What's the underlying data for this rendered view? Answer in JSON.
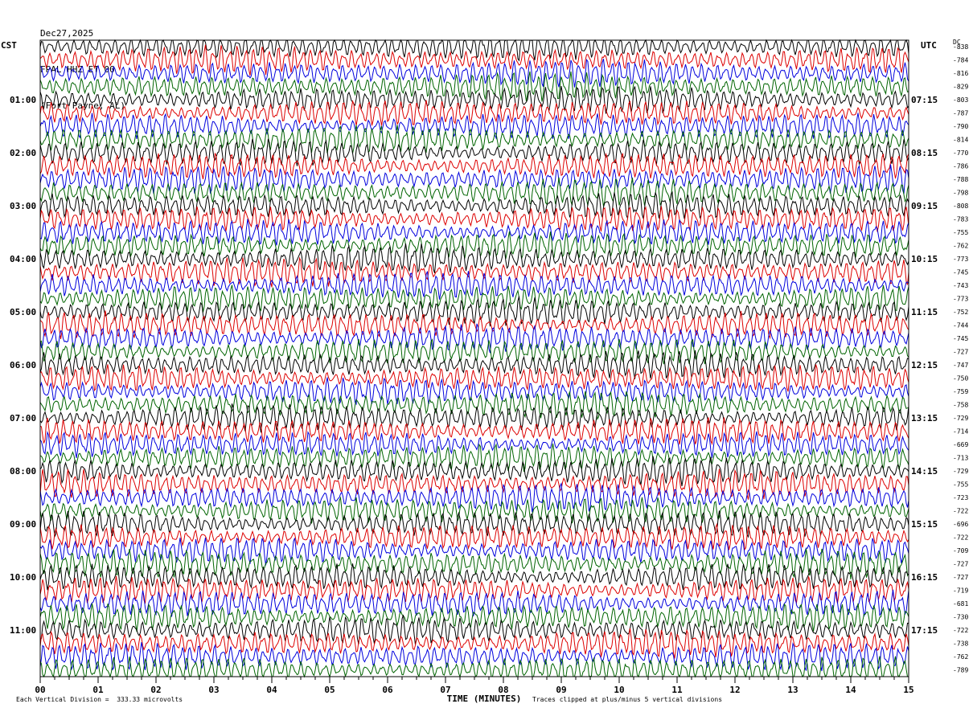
{
  "header": {
    "date": "Dec27,2025",
    "station": "FPAL HHZ ET 00",
    "location": "(Fort Payne, AL)"
  },
  "left_tz": "CST",
  "right_tz": "UTC",
  "dc_label": "DC",
  "footer": {
    "scale": "Each Vertical Division =  333.33 microvolts",
    "clip": "Traces clipped at plus/minus 5 vertical divisions"
  },
  "chart_data": {
    "type": "line",
    "title": "",
    "xlabel": "TIME (MINUTES)",
    "ylabel": "",
    "x_ticks": [
      "00",
      "01",
      "02",
      "03",
      "04",
      "05",
      "06",
      "07",
      "08",
      "09",
      "10",
      "11",
      "12",
      "13",
      "14",
      "15"
    ],
    "xlim": [
      0,
      15
    ],
    "trace_colors": [
      "#000000",
      "#dd0000",
      "#0000dd",
      "#006400"
    ],
    "left_time_labels": [
      "01:00",
      "02:00",
      "03:00",
      "04:00",
      "05:00",
      "06:00",
      "07:00",
      "08:00",
      "09:00",
      "10:00",
      "11:00"
    ],
    "right_time_labels": [
      "07:15",
      "08:15",
      "09:15",
      "10:15",
      "11:15",
      "12:15",
      "13:15",
      "14:15",
      "15:15",
      "16:15",
      "17:15"
    ],
    "time_label_rows": [
      4,
      8,
      12,
      16,
      20,
      24,
      28,
      32,
      36,
      40,
      44
    ],
    "dc_offsets": [
      -838,
      -784,
      -816,
      -829,
      -803,
      -787,
      -790,
      -814,
      -770,
      -786,
      -788,
      -798,
      -808,
      -783,
      -755,
      -762,
      -773,
      -745,
      -743,
      -773,
      -752,
      -744,
      -745,
      -727,
      -747,
      -750,
      -759,
      -758,
      -729,
      -714,
      -669,
      -713,
      -729,
      -755,
      -723,
      -722,
      -696,
      -722,
      -709,
      -727,
      -727,
      -719,
      -681,
      -730,
      -722,
      -738,
      -762,
      -789
    ],
    "trace_count": 48
  }
}
